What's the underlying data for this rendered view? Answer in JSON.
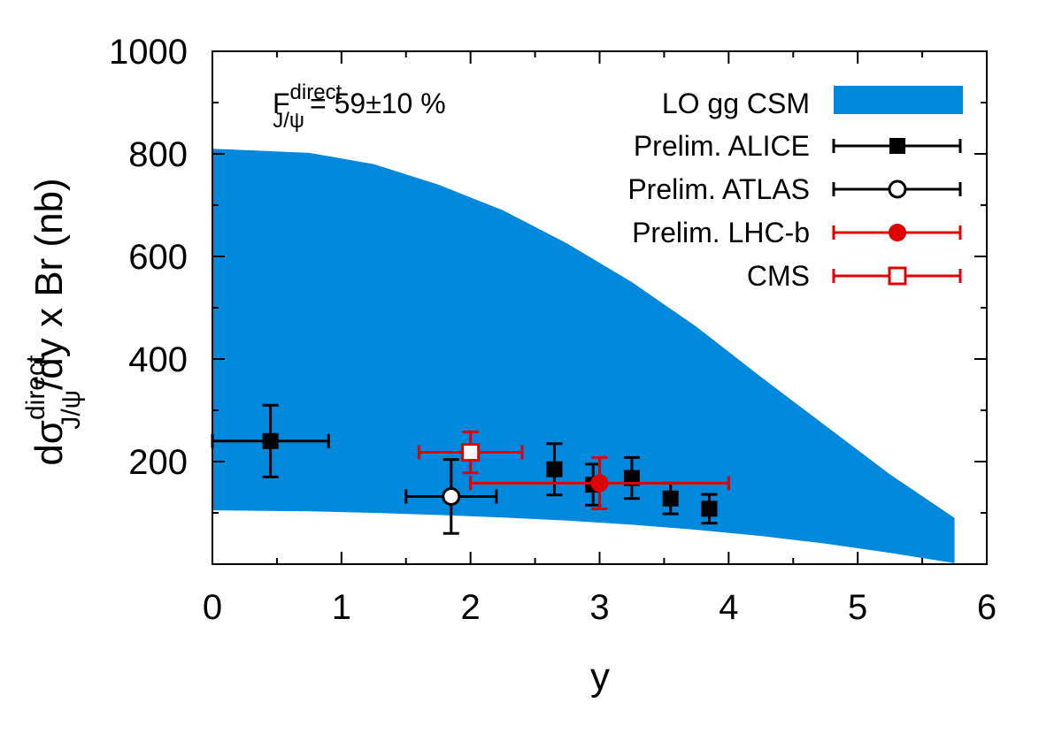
{
  "chart_data": {
    "type": "scatter",
    "title": "",
    "xlabel": "y",
    "ylabel": {
      "prefix": "dσ",
      "superscript": "direct",
      "subscript": "J/ψ",
      "suffix": "/dy x Br (nb)"
    },
    "xlim": [
      0,
      6
    ],
    "ylim": [
      0,
      1000
    ],
    "x_ticks": [
      0,
      1,
      2,
      3,
      4,
      5,
      6
    ],
    "y_ticks": [
      200,
      400,
      600,
      800,
      1000
    ],
    "annotation": {
      "prefix": "F",
      "superscript": "direct",
      "subscript": "J/ψ",
      "value": "= 59±10 %"
    },
    "band": {
      "name": "LO gg CSM",
      "color": "#0088dd",
      "x": [
        0,
        0.75,
        1.25,
        1.75,
        2.25,
        2.75,
        3.25,
        3.75,
        4.25,
        4.75,
        5.25,
        5.75
      ],
      "upper": [
        810,
        802,
        780,
        740,
        690,
        625,
        550,
        463,
        365,
        270,
        175,
        90
      ],
      "lower": [
        105,
        103,
        100,
        96,
        91,
        85,
        77,
        67,
        55,
        40,
        22,
        2
      ]
    },
    "series": [
      {
        "name": "Prelim. ALICE",
        "color": "#000000",
        "marker": "square-filled",
        "points": [
          {
            "x": 0.45,
            "y": 240,
            "xerr": 0.45,
            "yerr": 70
          },
          {
            "x": 2.65,
            "y": 185,
            "xerr": 0.0,
            "yerr": 50
          },
          {
            "x": 2.95,
            "y": 155,
            "xerr": 0.0,
            "yerr": 40
          },
          {
            "x": 3.25,
            "y": 168,
            "xerr": 0.0,
            "yerr": 40
          },
          {
            "x": 3.55,
            "y": 128,
            "xerr": 0.0,
            "yerr": 30
          },
          {
            "x": 3.85,
            "y": 108,
            "xerr": 0.0,
            "yerr": 28
          }
        ]
      },
      {
        "name": "Prelim. ATLAS",
        "color": "#000000",
        "marker": "circle-open",
        "points": [
          {
            "x": 1.85,
            "y": 132,
            "xerr": 0.35,
            "yerr": 72
          }
        ]
      },
      {
        "name": "Prelim. LHC-b",
        "color": "#e00000",
        "marker": "circle-filled",
        "points": [
          {
            "x": 3.0,
            "y": 158,
            "xerr": 1.0,
            "yerr": 50
          }
        ]
      },
      {
        "name": "CMS",
        "color": "#e00000",
        "marker": "square-open",
        "points": [
          {
            "x": 2.0,
            "y": 218,
            "xerr": 0.4,
            "yerr": 40
          }
        ]
      }
    ],
    "legend_position": "top-right"
  }
}
